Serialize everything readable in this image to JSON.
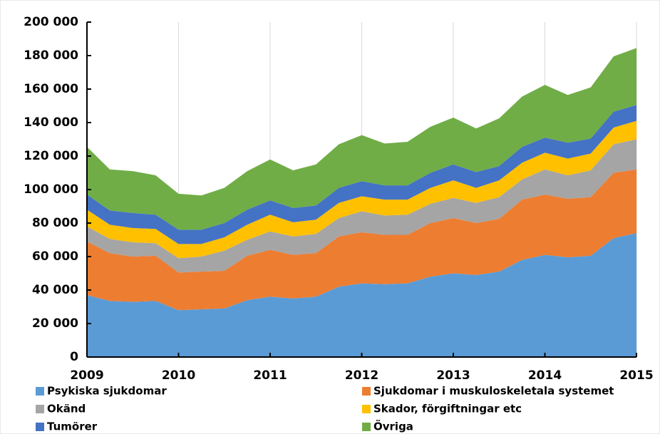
{
  "chart_data": {
    "type": "stacked_area",
    "x": [
      2009,
      2009.25,
      2009.5,
      2009.75,
      2010,
      2010.25,
      2010.5,
      2010.75,
      2011,
      2011.25,
      2011.5,
      2011.75,
      2012,
      2012.25,
      2012.5,
      2012.75,
      2013,
      2013.25,
      2013.5,
      2013.75,
      2014,
      2014.25,
      2014.5,
      2014.75,
      2015
    ],
    "series": [
      {
        "name": "Psykiska sjukdomar",
        "color": "#5b9bd5",
        "values": [
          37000,
          33500,
          33000,
          33500,
          28000,
          28500,
          29000,
          34000,
          36000,
          35000,
          36000,
          42000,
          44000,
          43500,
          44000,
          48000,
          50000,
          49000,
          51000,
          58000,
          61000,
          59500,
          60500,
          71000,
          74000
        ]
      },
      {
        "name": "Sjukdomar i muskuloskeletala systemet",
        "color": "#ed7d31",
        "values": [
          32000,
          28500,
          27000,
          27000,
          22500,
          22500,
          22500,
          26500,
          28000,
          26000,
          26000,
          30000,
          30500,
          29500,
          29000,
          32000,
          33000,
          31000,
          31500,
          36000,
          36000,
          35000,
          35000,
          39000,
          38000
        ]
      },
      {
        "name": "Okänd",
        "color": "#a5a5a5",
        "values": [
          9000,
          8500,
          8500,
          7500,
          8500,
          9000,
          12000,
          9500,
          11000,
          11000,
          11500,
          11000,
          12500,
          11500,
          12000,
          11500,
          12000,
          12000,
          13000,
          12000,
          15000,
          14000,
          16000,
          17000,
          18000
        ]
      },
      {
        "name": "Skador, förgiftningar etc",
        "color": "#ffc000",
        "values": [
          10000,
          8500,
          8500,
          8500,
          8500,
          7500,
          8000,
          9000,
          10000,
          8500,
          8500,
          9000,
          9000,
          9500,
          9000,
          9500,
          10500,
          9000,
          10000,
          10000,
          10000,
          10000,
          10000,
          10000,
          11000
        ]
      },
      {
        "name": "Tumörer",
        "color": "#4472c4",
        "values": [
          9000,
          8500,
          9000,
          8500,
          8500,
          8500,
          8500,
          9000,
          8500,
          8500,
          8500,
          9000,
          9000,
          8500,
          8500,
          9000,
          9500,
          9500,
          8500,
          9500,
          9000,
          9500,
          9000,
          9500,
          9500
        ]
      },
      {
        "name": "Övriga",
        "color": "#70ad47",
        "values": [
          28500,
          24500,
          25000,
          23500,
          21500,
          20500,
          21000,
          23000,
          24500,
          22500,
          24500,
          26000,
          27500,
          25000,
          26000,
          27500,
          28000,
          26000,
          28500,
          30000,
          31500,
          28500,
          30500,
          33000,
          34000
        ]
      }
    ],
    "xlim": [
      2009,
      2015
    ],
    "xticks": [
      2009,
      2010,
      2011,
      2012,
      2013,
      2014,
      2015
    ],
    "ylim": [
      0,
      200000
    ],
    "yticks": [
      0,
      {
        "value": 20000,
        "label": "20 000"
      },
      {
        "value": 40000,
        "label": "40 000"
      },
      {
        "value": 60000,
        "label": "60 000"
      },
      {
        "value": 80000,
        "label": "80 000"
      },
      {
        "value": 100000,
        "label": "100 000"
      },
      {
        "value": 120000,
        "label": "120 000"
      },
      {
        "value": 140000,
        "label": "140 000"
      },
      {
        "value": 160000,
        "label": "160 000"
      },
      {
        "value": 180000,
        "label": "180 000"
      },
      {
        "value": 200000,
        "label": "200 000"
      }
    ],
    "grid": "x",
    "legend": "bottom"
  }
}
